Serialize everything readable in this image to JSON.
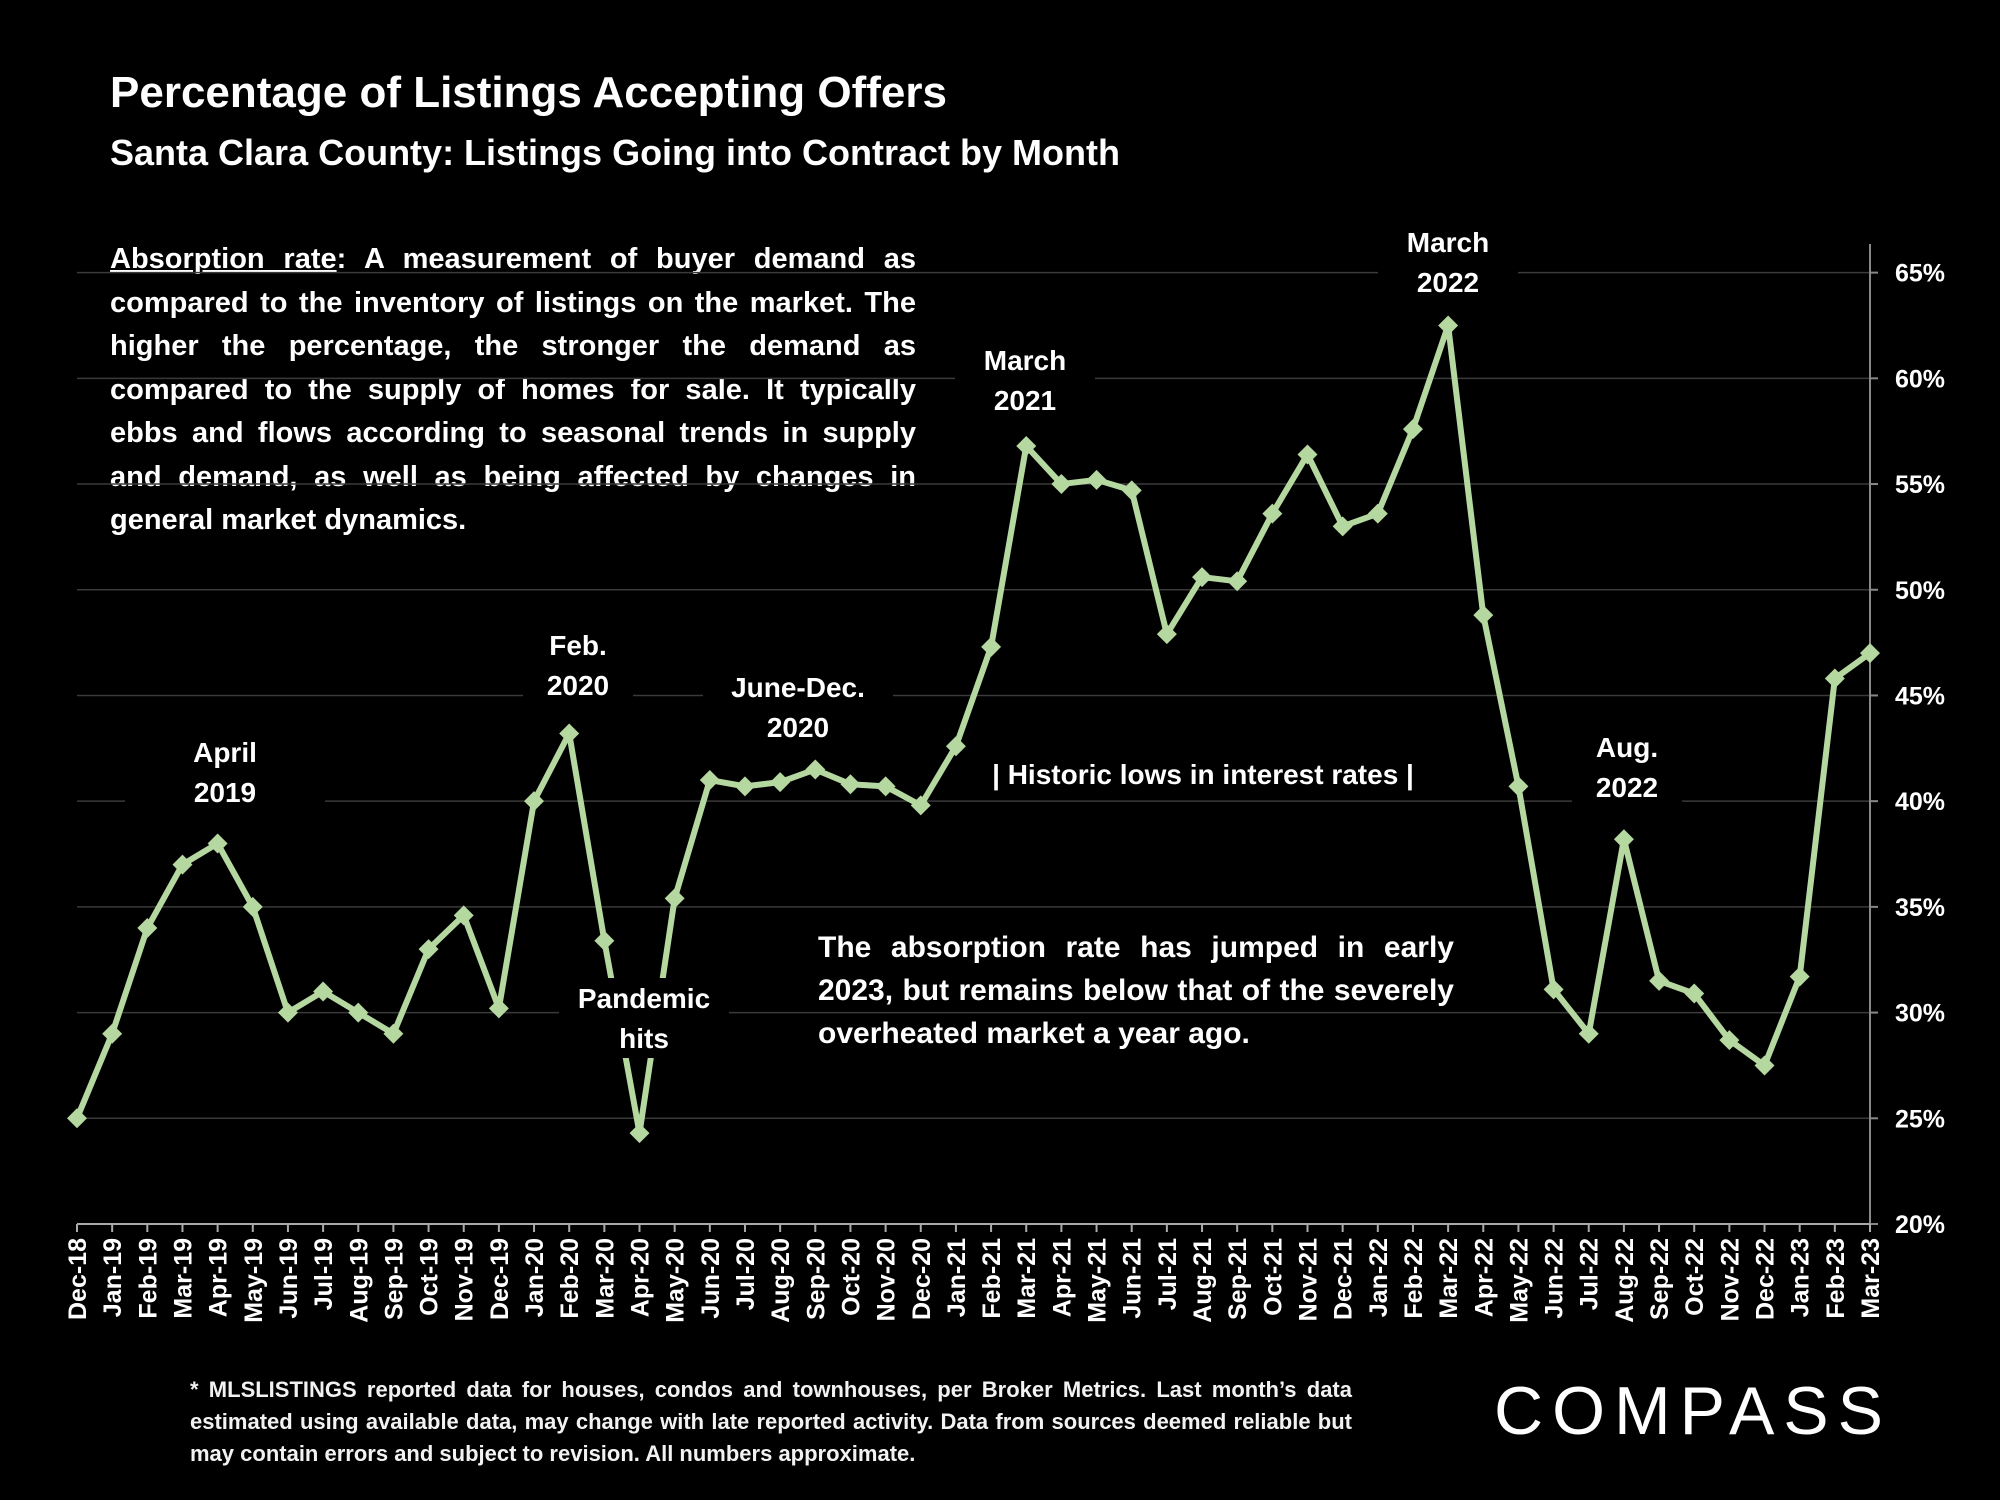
{
  "header": {
    "title": "Percentage of Listings Accepting Offers",
    "subtitle": "Santa Clara County: Listings Going into Contract by Month"
  },
  "description": {
    "term": "Absorption rate",
    "text": ":  A measurement of buyer demand as compared to the inventory of listings on the market. The higher the percentage, the stronger the demand as compared to the supply of homes for sale. It typically ebbs and flows according to seasonal trends in supply and demand, as well as being affected by changes in general market dynamics."
  },
  "note": "The absorption rate has jumped in early 2023, but remains below that of the severely overheated market a year ago.",
  "footnote": "* MLSLISTINGS reported data for houses, condos and townhouses, per Broker Metrics. Last month’s data estimated using available data, may change with late reported activity. Data from sources deemed reliable but may contain errors and subject to revision. All numbers approximate.",
  "logo": "COMPASS",
  "colors": {
    "background": "#000000",
    "line": "#b5d7a0",
    "text": "#ffffff",
    "grid": "#3a3a3a"
  },
  "chart_data": {
    "type": "line",
    "title": "Percentage of Listings Accepting Offers",
    "subtitle": "Santa Clara County: Listings Going into Contract by Month",
    "x": [
      "Dec-18",
      "Jan-19",
      "Feb-19",
      "Mar-19",
      "Apr-19",
      "May-19",
      "Jun-19",
      "Jul-19",
      "Aug-19",
      "Sep-19",
      "Oct-19",
      "Nov-19",
      "Dec-19",
      "Jan-20",
      "Feb-20",
      "Mar-20",
      "Apr-20",
      "May-20",
      "Jun-20",
      "Jul-20",
      "Aug-20",
      "Sep-20",
      "Oct-20",
      "Nov-20",
      "Dec-20",
      "Jan-21",
      "Feb-21",
      "Mar-21",
      "Apr-21",
      "May-21",
      "Jun-21",
      "Jul-21",
      "Aug-21",
      "Sep-21",
      "Oct-21",
      "Nov-21",
      "Dec-21",
      "Jan-22",
      "Feb-22",
      "Mar-22",
      "Apr-22",
      "May-22",
      "Jun-22",
      "Jul-22",
      "Aug-22",
      "Sep-22",
      "Oct-22",
      "Nov-22",
      "Dec-22",
      "Jan-23",
      "Feb-23",
      "Mar-23"
    ],
    "series": [
      {
        "values": [
          25.0,
          29.0,
          34.0,
          37.0,
          38.0,
          35.0,
          30.0,
          31.0,
          30.0,
          29.0,
          33.0,
          34.6,
          30.2,
          40.0,
          43.2,
          33.4,
          24.3,
          35.4,
          41.0,
          40.7,
          40.9,
          41.5,
          40.8,
          40.7,
          39.8,
          42.6,
          47.3,
          56.8,
          55.0,
          55.2,
          54.7,
          47.9,
          50.6,
          50.4,
          53.6,
          56.4,
          53.0,
          53.6,
          57.6,
          62.5,
          48.8,
          40.7,
          31.1,
          29.0,
          38.2,
          31.5,
          30.9,
          28.7,
          27.5,
          31.7,
          45.8,
          47.0
        ]
      }
    ],
    "y_axis": {
      "min": 20,
      "max": 65,
      "step": 5,
      "suffix": "%",
      "position": "right"
    },
    "grid": true,
    "annotations": [
      {
        "id": "apr2019",
        "lines": [
          "April",
          "2019"
        ]
      },
      {
        "id": "feb2020",
        "lines": [
          "Feb.",
          "2020"
        ]
      },
      {
        "id": "pandemic",
        "lines": [
          "Pandemic",
          "hits"
        ]
      },
      {
        "id": "junedec2020",
        "lines": [
          "June-Dec.",
          "2020"
        ]
      },
      {
        "id": "mar2021",
        "lines": [
          "March",
          "2021"
        ]
      },
      {
        "id": "mar2022",
        "lines": [
          "March",
          "2022"
        ]
      },
      {
        "id": "aug2022",
        "lines": [
          "Aug.",
          "2022"
        ]
      },
      {
        "id": "lowrates",
        "lines": [
          "| Historic lows in interest rates |"
        ]
      }
    ]
  }
}
